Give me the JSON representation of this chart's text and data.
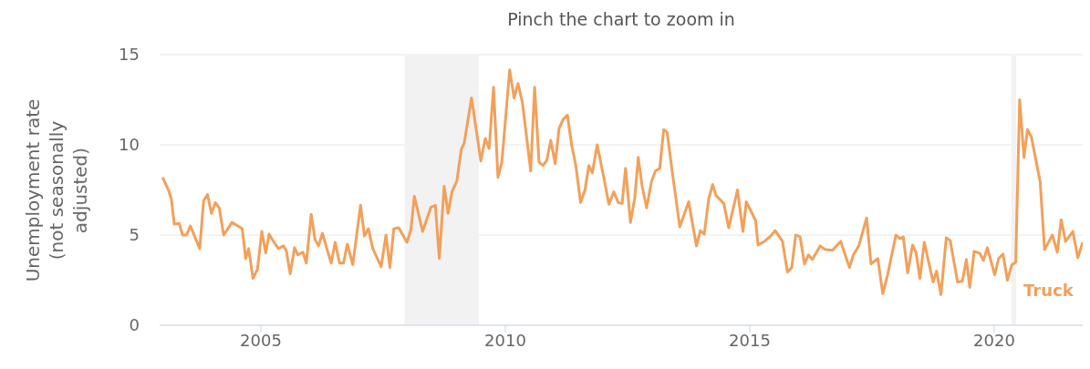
{
  "chart_data": {
    "type": "line",
    "title": "Pinch the chart to zoom in",
    "ylabel": "Unemployment rate (not seasonally adjusted)",
    "xlim": [
      2002.93,
      2021.81
    ],
    "xticks": [
      2005,
      2010,
      2015,
      2020
    ],
    "ylim": [
      0,
      15
    ],
    "yticks": [
      0,
      5,
      10,
      15
    ],
    "grid": "y",
    "legend": false,
    "marker": "none",
    "line_style": "solid",
    "bands": [
      {
        "axis": "x",
        "from": 2007.94,
        "to": 2009.46,
        "color": "#f2f2f2"
      },
      {
        "axis": "x",
        "from": 2020.35,
        "to": 2020.45,
        "color": "#f2f2f2"
      }
    ],
    "series": [
      {
        "name": "Truck",
        "color": "#f2a05a",
        "x": [
          2002.99,
          2003.11,
          2003.17,
          2003.23,
          2003.33,
          2003.4,
          2003.48,
          2003.56,
          2003.75,
          2003.83,
          2003.91,
          2003.99,
          2004.07,
          2004.15,
          2004.24,
          2004.41,
          2004.56,
          2004.62,
          2004.69,
          2004.75,
          2004.84,
          2004.93,
          2005.02,
          2005.1,
          2005.17,
          2005.27,
          2005.36,
          2005.46,
          2005.52,
          2005.6,
          2005.69,
          2005.76,
          2005.86,
          2005.93,
          2006.03,
          2006.11,
          2006.18,
          2006.26,
          2006.35,
          2006.44,
          2006.52,
          2006.61,
          2006.69,
          2006.77,
          2006.88,
          2007.04,
          2007.12,
          2007.2,
          2007.29,
          2007.46,
          2007.56,
          2007.64,
          2007.72,
          2007.82,
          2007.99,
          2008.07,
          2008.14,
          2008.31,
          2008.48,
          2008.57,
          2008.65,
          2008.75,
          2008.83,
          2008.91,
          2009.01,
          2009.1,
          2009.16,
          2009.31,
          2009.5,
          2009.59,
          2009.67,
          2009.76,
          2009.85,
          2009.93,
          2010.09,
          2010.18,
          2010.26,
          2010.35,
          2010.52,
          2010.6,
          2010.69,
          2010.77,
          2010.85,
          2010.93,
          2011.02,
          2011.1,
          2011.18,
          2011.27,
          2011.36,
          2011.44,
          2011.54,
          2011.63,
          2011.71,
          2011.78,
          2011.88,
          2012.0,
          2012.12,
          2012.22,
          2012.31,
          2012.39,
          2012.46,
          2012.56,
          2012.65,
          2012.72,
          2012.8,
          2012.89,
          2012.99,
          2013.07,
          2013.16,
          2013.24,
          2013.31,
          2013.42,
          2013.57,
          2013.75,
          2013.91,
          2013.99,
          2014.07,
          2014.16,
          2014.24,
          2014.31,
          2014.47,
          2014.57,
          2014.75,
          2014.86,
          2014.93,
          2015.03,
          2015.12,
          2015.17,
          2015.3,
          2015.43,
          2015.52,
          2015.67,
          2015.77,
          2015.86,
          2015.94,
          2016.03,
          2016.12,
          2016.2,
          2016.28,
          2016.44,
          2016.54,
          2016.69,
          2016.86,
          2017.04,
          2017.12,
          2017.23,
          2017.39,
          2017.48,
          2017.62,
          2017.72,
          2017.82,
          2017.99,
          2018.07,
          2018.14,
          2018.23,
          2018.33,
          2018.4,
          2018.48,
          2018.57,
          2018.75,
          2018.82,
          2018.91,
          2019.02,
          2019.1,
          2019.25,
          2019.35,
          2019.43,
          2019.5,
          2019.59,
          2019.7,
          2019.78,
          2019.86,
          2020.01,
          2020.09,
          2020.18,
          2020.27,
          2020.36,
          2020.44,
          2020.52,
          2020.61,
          2020.68,
          2020.76,
          2020.94,
          2021.03,
          2021.19,
          2021.29,
          2021.37,
          2021.46,
          2021.61,
          2021.71,
          2021.81
        ],
        "values": [
          8.2,
          7.5,
          7.0,
          5.6,
          5.65,
          5.0,
          5.0,
          5.5,
          4.25,
          6.9,
          7.25,
          6.2,
          6.8,
          6.5,
          5.0,
          5.7,
          5.45,
          5.35,
          3.7,
          4.25,
          2.6,
          3.1,
          5.2,
          4.0,
          5.05,
          4.6,
          4.25,
          4.4,
          4.15,
          2.85,
          4.3,
          3.9,
          4.05,
          3.45,
          6.15,
          4.75,
          4.4,
          5.1,
          4.25,
          3.45,
          4.6,
          3.45,
          3.45,
          4.5,
          3.35,
          6.65,
          4.95,
          5.35,
          4.25,
          3.25,
          5.0,
          3.2,
          5.35,
          5.4,
          4.6,
          5.3,
          7.15,
          5.2,
          6.55,
          6.65,
          3.7,
          7.7,
          6.2,
          7.4,
          8.0,
          9.75,
          10.1,
          12.6,
          9.1,
          10.35,
          9.8,
          13.2,
          8.2,
          9.05,
          14.15,
          12.6,
          13.4,
          12.35,
          8.55,
          13.2,
          9.05,
          8.85,
          9.15,
          10.25,
          8.95,
          10.9,
          11.4,
          11.65,
          9.95,
          8.9,
          6.8,
          7.5,
          8.85,
          8.45,
          10.0,
          8.4,
          6.7,
          7.4,
          6.8,
          6.75,
          8.7,
          5.7,
          7.1,
          9.3,
          7.7,
          6.5,
          7.95,
          8.55,
          8.7,
          10.85,
          10.7,
          8.4,
          5.45,
          6.85,
          4.4,
          5.25,
          5.05,
          7.0,
          7.8,
          7.2,
          6.75,
          5.4,
          7.5,
          5.2,
          6.85,
          6.3,
          5.8,
          4.45,
          4.65,
          4.95,
          5.25,
          4.65,
          2.95,
          3.2,
          5.0,
          4.9,
          3.4,
          3.9,
          3.65,
          4.4,
          4.2,
          4.15,
          4.65,
          3.2,
          3.9,
          4.4,
          5.95,
          3.4,
          3.7,
          1.75,
          2.8,
          5.0,
          4.8,
          4.9,
          2.9,
          4.45,
          4.05,
          2.6,
          4.6,
          2.4,
          3.0,
          1.7,
          4.85,
          4.7,
          2.4,
          2.45,
          3.65,
          2.1,
          4.1,
          4.0,
          3.6,
          4.3,
          2.8,
          3.7,
          3.95,
          2.5,
          3.35,
          3.5,
          12.5,
          9.3,
          10.85,
          10.45,
          7.95,
          4.2,
          5.0,
          4.05,
          5.85,
          4.65,
          5.2,
          3.75,
          4.6
        ]
      }
    ]
  }
}
